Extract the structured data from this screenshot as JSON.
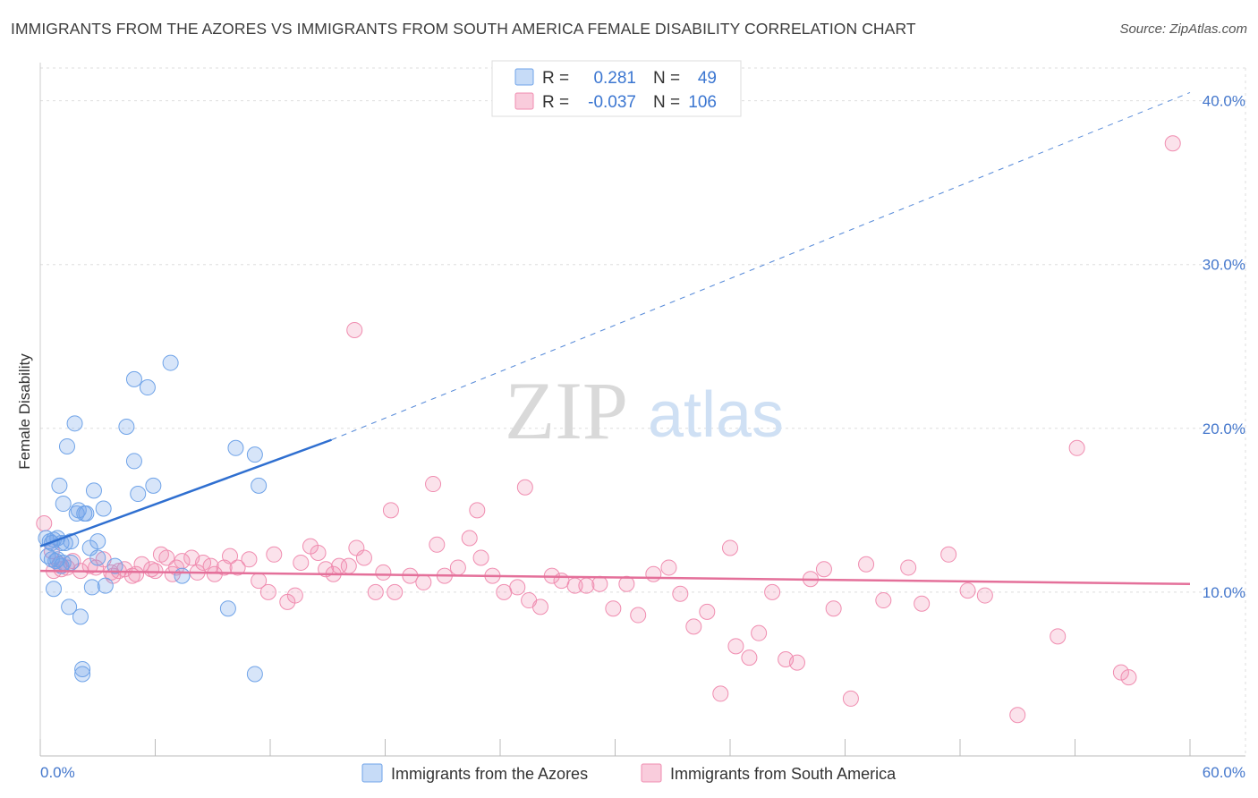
{
  "title": "IMMIGRANTS FROM THE AZORES VS IMMIGRANTS FROM SOUTH AMERICA FEMALE DISABILITY CORRELATION CHART",
  "source": "Source: ZipAtlas.com",
  "watermark": {
    "zip": "ZIP",
    "atlas": "atlas"
  },
  "colors": {
    "blue": "#6fa3e8",
    "blue_line": "#2f6fd0",
    "pink": "#f08db0",
    "pink_line": "#e4709a",
    "tick_label": "#4477cc",
    "grid": "#dddddd"
  },
  "legend": {
    "rows": [
      {
        "r_label": "R =",
        "r_value": "0.281",
        "n_label": "N =",
        "n_value": "49",
        "color": "blue"
      },
      {
        "r_label": "R =",
        "r_value": "-0.037",
        "n_label": "N =",
        "n_value": "106",
        "color": "pink"
      }
    ]
  },
  "chart_data": {
    "type": "scatter",
    "title": "IMMIGRANTS FROM THE AZORES VS IMMIGRANTS FROM SOUTH AMERICA FEMALE DISABILITY CORRELATION CHART",
    "xlabel": "",
    "ylabel": "Female Disability",
    "xlim": [
      0,
      60
    ],
    "ylim": [
      0,
      42
    ],
    "x_tick_labels": [
      "0.0%",
      "60.0%"
    ],
    "y_ticks": [
      10,
      20,
      30,
      40
    ],
    "y_tick_labels": [
      "10.0%",
      "20.0%",
      "30.0%",
      "40.0%"
    ],
    "grid": true,
    "series": [
      {
        "name": "Immigrants from the Azores",
        "color": "blue",
        "trend": {
          "x0": 0,
          "y0": 12.8,
          "x1": 15.2,
          "y1": 19.3,
          "dash_x1": 60,
          "dash_y1": 40.5
        },
        "points": [
          [
            0.3,
            13.3
          ],
          [
            0.4,
            12.2
          ],
          [
            0.5,
            13.1
          ],
          [
            0.6,
            12.0
          ],
          [
            0.6,
            13.0
          ],
          [
            0.7,
            13.2
          ],
          [
            0.7,
            10.2
          ],
          [
            0.8,
            11.9
          ],
          [
            0.9,
            12.0
          ],
          [
            0.9,
            13.3
          ],
          [
            1.0,
            16.5
          ],
          [
            1.1,
            13.0
          ],
          [
            1.1,
            11.6
          ],
          [
            1.2,
            15.4
          ],
          [
            1.2,
            11.8
          ],
          [
            1.3,
            13.0
          ],
          [
            1.4,
            18.9
          ],
          [
            1.5,
            9.1
          ],
          [
            1.6,
            13.1
          ],
          [
            1.6,
            11.8
          ],
          [
            1.8,
            20.3
          ],
          [
            1.9,
            14.8
          ],
          [
            2.0,
            15.0
          ],
          [
            2.1,
            8.5
          ],
          [
            2.2,
            5.3
          ],
          [
            2.2,
            5.0
          ],
          [
            2.3,
            14.8
          ],
          [
            2.4,
            14.8
          ],
          [
            2.6,
            12.7
          ],
          [
            2.7,
            10.3
          ],
          [
            2.8,
            16.2
          ],
          [
            3.0,
            13.1
          ],
          [
            3.0,
            12.1
          ],
          [
            3.3,
            15.1
          ],
          [
            3.4,
            10.4
          ],
          [
            3.9,
            11.6
          ],
          [
            4.5,
            20.1
          ],
          [
            4.9,
            18.0
          ],
          [
            4.9,
            23.0
          ],
          [
            5.1,
            16.0
          ],
          [
            5.6,
            22.5
          ],
          [
            5.9,
            16.5
          ],
          [
            6.8,
            24.0
          ],
          [
            7.4,
            11.0
          ],
          [
            9.8,
            9.0
          ],
          [
            10.2,
            18.8
          ],
          [
            11.2,
            5.0
          ],
          [
            11.2,
            18.4
          ],
          [
            11.4,
            16.5
          ]
        ]
      },
      {
        "name": "Immigrants from South America",
        "color": "pink",
        "trend": {
          "x0": 0,
          "y0": 11.3,
          "x1": 60,
          "y1": 10.5
        },
        "points": [
          [
            0.2,
            14.2
          ],
          [
            0.6,
            12.5
          ],
          [
            0.7,
            11.3
          ],
          [
            1.0,
            11.7
          ],
          [
            1.1,
            11.4
          ],
          [
            1.4,
            11.5
          ],
          [
            1.7,
            11.9
          ],
          [
            2.1,
            11.3
          ],
          [
            2.6,
            11.6
          ],
          [
            2.9,
            11.5
          ],
          [
            3.3,
            12.0
          ],
          [
            3.7,
            11.2
          ],
          [
            3.8,
            11.0
          ],
          [
            4.1,
            11.3
          ],
          [
            4.4,
            11.4
          ],
          [
            4.8,
            11.0
          ],
          [
            5.0,
            11.1
          ],
          [
            5.3,
            11.7
          ],
          [
            5.8,
            11.4
          ],
          [
            6.0,
            11.3
          ],
          [
            6.3,
            12.3
          ],
          [
            6.6,
            12.1
          ],
          [
            6.9,
            11.1
          ],
          [
            7.1,
            11.5
          ],
          [
            7.4,
            11.9
          ],
          [
            7.9,
            12.1
          ],
          [
            8.2,
            11.2
          ],
          [
            8.5,
            11.8
          ],
          [
            8.9,
            11.6
          ],
          [
            9.1,
            11.1
          ],
          [
            9.6,
            11.5
          ],
          [
            9.9,
            12.2
          ],
          [
            10.3,
            11.5
          ],
          [
            10.9,
            12.0
          ],
          [
            11.4,
            10.7
          ],
          [
            11.9,
            10.0
          ],
          [
            12.2,
            12.3
          ],
          [
            12.9,
            9.4
          ],
          [
            13.3,
            9.8
          ],
          [
            13.6,
            11.8
          ],
          [
            14.1,
            12.8
          ],
          [
            14.5,
            12.4
          ],
          [
            14.9,
            11.4
          ],
          [
            15.3,
            11.1
          ],
          [
            15.6,
            11.6
          ],
          [
            16.1,
            11.6
          ],
          [
            16.5,
            12.7
          ],
          [
            16.9,
            12.1
          ],
          [
            17.5,
            10.0
          ],
          [
            17.9,
            11.2
          ],
          [
            18.5,
            10.0
          ],
          [
            19.3,
            11.0
          ],
          [
            20.0,
            10.6
          ],
          [
            20.7,
            12.9
          ],
          [
            21.1,
            11.0
          ],
          [
            21.8,
            11.5
          ],
          [
            22.4,
            13.3
          ],
          [
            23.0,
            12.1
          ],
          [
            23.6,
            11.0
          ],
          [
            24.2,
            10.0
          ],
          [
            24.9,
            10.3
          ],
          [
            25.5,
            9.5
          ],
          [
            26.1,
            9.1
          ],
          [
            26.7,
            11.0
          ],
          [
            27.2,
            10.7
          ],
          [
            27.9,
            10.4
          ],
          [
            28.5,
            10.4
          ],
          [
            29.2,
            10.5
          ],
          [
            29.9,
            9.0
          ],
          [
            30.6,
            10.5
          ],
          [
            31.2,
            8.6
          ],
          [
            32.0,
            11.1
          ],
          [
            32.8,
            11.5
          ],
          [
            33.4,
            9.9
          ],
          [
            34.1,
            7.9
          ],
          [
            34.8,
            8.8
          ],
          [
            35.5,
            3.8
          ],
          [
            36.0,
            12.7
          ],
          [
            36.3,
            6.7
          ],
          [
            37.0,
            6.0
          ],
          [
            37.5,
            7.5
          ],
          [
            38.2,
            10.0
          ],
          [
            38.9,
            5.9
          ],
          [
            39.5,
            5.7
          ],
          [
            40.2,
            10.8
          ],
          [
            40.9,
            11.4
          ],
          [
            41.4,
            9.0
          ],
          [
            42.3,
            3.5
          ],
          [
            43.1,
            11.7
          ],
          [
            44.0,
            9.5
          ],
          [
            45.3,
            11.5
          ],
          [
            46.0,
            9.3
          ],
          [
            47.4,
            12.3
          ],
          [
            48.4,
            10.1
          ],
          [
            49.3,
            9.8
          ],
          [
            51.0,
            2.5
          ],
          [
            53.1,
            7.3
          ],
          [
            54.1,
            18.8
          ],
          [
            56.4,
            5.1
          ],
          [
            56.8,
            4.8
          ],
          [
            59.1,
            37.4
          ],
          [
            16.4,
            26.0
          ],
          [
            20.5,
            16.6
          ],
          [
            18.3,
            15.0
          ],
          [
            22.8,
            15.0
          ],
          [
            25.3,
            16.4
          ]
        ]
      }
    ]
  }
}
